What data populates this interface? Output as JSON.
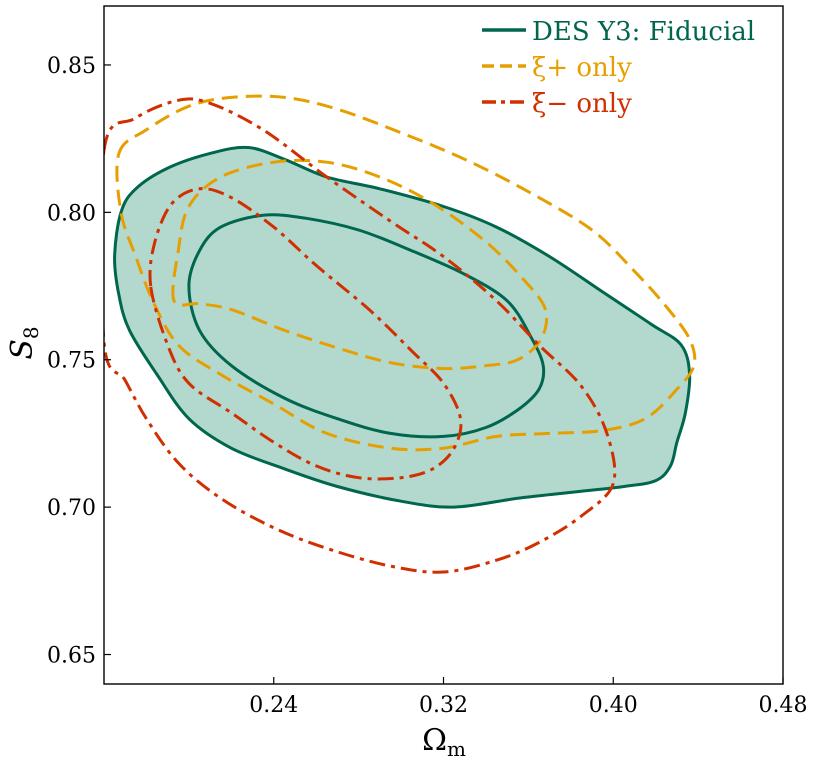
{
  "chart_data": {
    "type": "contour",
    "title": "",
    "xlabel": "Ω",
    "xlabel_sub": "m",
    "ylabel": "S",
    "ylabel_sub": "8",
    "xlim": [
      0.16,
      0.48
    ],
    "ylim": [
      0.64,
      0.87
    ],
    "xticks": [
      0.24,
      0.32,
      0.4,
      0.48
    ],
    "xtick_labels": [
      "0.24",
      "0.32",
      "0.40",
      "0.48"
    ],
    "yticks": [
      0.65,
      0.7,
      0.75,
      0.8,
      0.85
    ],
    "ytick_labels": [
      "0.65",
      "0.70",
      "0.75",
      "0.80",
      "0.85"
    ],
    "legend_position": "top-right",
    "series": [
      {
        "name": "DES Y3: Fiducial",
        "legend_label": "DES Y3: Fiducial",
        "color": "#00664d",
        "fill": "#b3d9cf",
        "style": "solid",
        "contours": [
          {
            "level": "95%",
            "points": [
              [
                0.165,
                0.785
              ],
              [
                0.168,
                0.8
              ],
              [
                0.175,
                0.808
              ],
              [
                0.19,
                0.815
              ],
              [
                0.21,
                0.82
              ],
              [
                0.228,
                0.822
              ],
              [
                0.245,
                0.818
              ],
              [
                0.265,
                0.812
              ],
              [
                0.29,
                0.808
              ],
              [
                0.32,
                0.802
              ],
              [
                0.345,
                0.795
              ],
              [
                0.37,
                0.785
              ],
              [
                0.395,
                0.773
              ],
              [
                0.418,
                0.762
              ],
              [
                0.432,
                0.755
              ],
              [
                0.436,
                0.745
              ],
              [
                0.434,
                0.732
              ],
              [
                0.43,
                0.722
              ],
              [
                0.427,
                0.714
              ],
              [
                0.42,
                0.709
              ],
              [
                0.405,
                0.707
              ],
              [
                0.38,
                0.705
              ],
              [
                0.355,
                0.703
              ],
              [
                0.325,
                0.7
              ],
              [
                0.3,
                0.702
              ],
              [
                0.27,
                0.707
              ],
              [
                0.245,
                0.713
              ],
              [
                0.22,
                0.72
              ],
              [
                0.2,
                0.73
              ],
              [
                0.185,
                0.745
              ],
              [
                0.172,
                0.76
              ],
              [
                0.167,
                0.772
              ],
              [
                0.165,
                0.785
              ]
            ]
          },
          {
            "level": "68%",
            "points": [
              [
                0.2,
                0.775
              ],
              [
                0.205,
                0.787
              ],
              [
                0.215,
                0.795
              ],
              [
                0.235,
                0.799
              ],
              [
                0.255,
                0.798
              ],
              [
                0.28,
                0.794
              ],
              [
                0.305,
                0.787
              ],
              [
                0.33,
                0.779
              ],
              [
                0.35,
                0.77
              ],
              [
                0.361,
                0.758
              ],
              [
                0.367,
                0.748
              ],
              [
                0.365,
                0.74
              ],
              [
                0.355,
                0.733
              ],
              [
                0.34,
                0.727
              ],
              [
                0.32,
                0.724
              ],
              [
                0.295,
                0.725
              ],
              [
                0.27,
                0.73
              ],
              [
                0.245,
                0.737
              ],
              [
                0.22,
                0.748
              ],
              [
                0.205,
                0.76
              ],
              [
                0.2,
                0.775
              ]
            ]
          }
        ]
      },
      {
        "name": "ξ+ only",
        "legend_label": "ξ+ only",
        "color": "#e69f00",
        "fill": "none",
        "style": "dashed",
        "contours": [
          {
            "level": "95%",
            "points": [
              [
                0.167,
                0.82
              ],
              [
                0.18,
                0.828
              ],
              [
                0.2,
                0.836
              ],
              [
                0.22,
                0.839
              ],
              [
                0.245,
                0.839
              ],
              [
                0.27,
                0.835
              ],
              [
                0.3,
                0.827
              ],
              [
                0.33,
                0.818
              ],
              [
                0.36,
                0.807
              ],
              [
                0.39,
                0.794
              ],
              [
                0.41,
                0.78
              ],
              [
                0.425,
                0.768
              ],
              [
                0.436,
                0.757
              ],
              [
                0.438,
                0.748
              ],
              [
                0.43,
                0.74
              ],
              [
                0.415,
                0.73
              ],
              [
                0.395,
                0.726
              ],
              [
                0.37,
                0.725
              ],
              [
                0.345,
                0.724
              ],
              [
                0.32,
                0.72
              ],
              [
                0.295,
                0.72
              ],
              [
                0.265,
                0.725
              ],
              [
                0.24,
                0.735
              ],
              [
                0.215,
                0.745
              ],
              [
                0.195,
                0.755
              ],
              [
                0.183,
                0.77
              ],
              [
                0.175,
                0.785
              ],
              [
                0.168,
                0.8
              ],
              [
                0.167,
                0.82
              ]
            ]
          },
          {
            "level": "68%",
            "points": [
              [
                0.193,
                0.77
              ],
              [
                0.195,
                0.787
              ],
              [
                0.2,
                0.802
              ],
              [
                0.215,
                0.812
              ],
              [
                0.24,
                0.817
              ],
              [
                0.265,
                0.817
              ],
              [
                0.29,
                0.812
              ],
              [
                0.315,
                0.803
              ],
              [
                0.34,
                0.79
              ],
              [
                0.358,
                0.777
              ],
              [
                0.368,
                0.767
              ],
              [
                0.366,
                0.757
              ],
              [
                0.355,
                0.75
              ],
              [
                0.34,
                0.748
              ],
              [
                0.32,
                0.747
              ],
              [
                0.295,
                0.749
              ],
              [
                0.27,
                0.754
              ],
              [
                0.245,
                0.76
              ],
              [
                0.22,
                0.767
              ],
              [
                0.205,
                0.769
              ],
              [
                0.193,
                0.77
              ]
            ]
          }
        ]
      },
      {
        "name": "ξ− only",
        "legend_label": "ξ− only",
        "color": "#d03000",
        "fill": "none",
        "style": "dashdot",
        "contours": [
          {
            "level": "95%",
            "points": [
              [
                0.16,
                0.821
              ],
              [
                0.175,
                0.832
              ],
              [
                0.195,
                0.838
              ],
              [
                0.21,
                0.837
              ],
              [
                0.235,
                0.828
              ],
              [
                0.265,
                0.812
              ],
              [
                0.295,
                0.797
              ],
              [
                0.32,
                0.785
              ],
              [
                0.345,
                0.77
              ],
              [
                0.365,
                0.755
              ],
              [
                0.385,
                0.741
              ],
              [
                0.397,
                0.725
              ],
              [
                0.4,
                0.708
              ],
              [
                0.385,
                0.697
              ],
              [
                0.365,
                0.688
              ],
              [
                0.345,
                0.682
              ],
              [
                0.32,
                0.678
              ],
              [
                0.295,
                0.68
              ],
              [
                0.265,
                0.686
              ],
              [
                0.24,
                0.693
              ],
              [
                0.215,
                0.703
              ],
              [
                0.195,
                0.715
              ],
              [
                0.18,
                0.73
              ],
              [
                0.17,
                0.743
              ],
              [
                0.16,
                0.756
              ],
              [
                0.16,
                0.821
              ]
            ]
          },
          {
            "level": "68%",
            "points": [
              [
                0.182,
                0.775
              ],
              [
                0.184,
                0.79
              ],
              [
                0.192,
                0.803
              ],
              [
                0.205,
                0.808
              ],
              [
                0.22,
                0.805
              ],
              [
                0.24,
                0.795
              ],
              [
                0.26,
                0.782
              ],
              [
                0.285,
                0.767
              ],
              [
                0.305,
                0.753
              ],
              [
                0.32,
                0.742
              ],
              [
                0.328,
                0.73
              ],
              [
                0.325,
                0.72
              ],
              [
                0.315,
                0.713
              ],
              [
                0.3,
                0.71
              ],
              [
                0.28,
                0.71
              ],
              [
                0.26,
                0.714
              ],
              [
                0.24,
                0.722
              ],
              [
                0.22,
                0.732
              ],
              [
                0.2,
                0.742
              ],
              [
                0.19,
                0.755
              ],
              [
                0.182,
                0.775
              ]
            ]
          }
        ]
      }
    ]
  }
}
